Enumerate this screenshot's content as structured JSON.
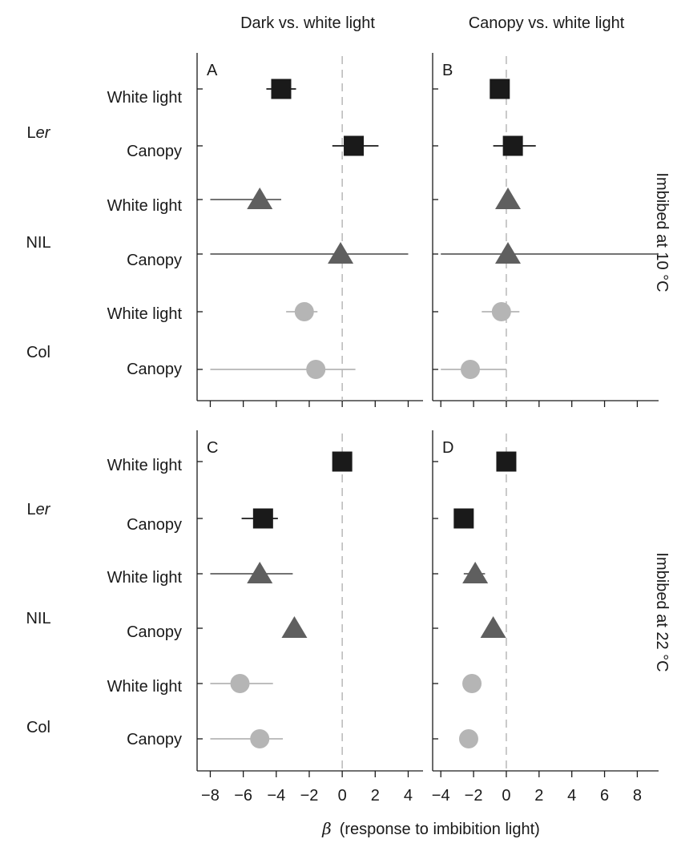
{
  "column_titles": [
    "Dark vs. white light",
    "Canopy vs. white light"
  ],
  "row_strips": [
    "Imbibed at 10 °C",
    "Imbibed at 22 °C"
  ],
  "genotype_labels": [
    "Ler",
    "NIL",
    "Col"
  ],
  "x_label": {
    "symbol": "β",
    "text": "(response to imbibition light)"
  },
  "colors": {
    "Ler": "#1a1a1a",
    "NIL": "#5f5f5f",
    "Col": "#b5b5b5",
    "zero_line": "#b3b3b3"
  },
  "markers": {
    "Ler": "square",
    "NIL": "triangle",
    "Col": "circle"
  },
  "chart_data": {
    "type": "forest",
    "rows": [
      {
        "genotype": "Ler",
        "treatment": "White light"
      },
      {
        "genotype": "Ler",
        "treatment": "Canopy"
      },
      {
        "genotype": "NIL",
        "treatment": "White light"
      },
      {
        "genotype": "NIL",
        "treatment": "Canopy"
      },
      {
        "genotype": "Col",
        "treatment": "White light"
      },
      {
        "genotype": "Col",
        "treatment": "Canopy"
      }
    ],
    "columns": [
      {
        "title": "Dark vs. white light",
        "xlim": [
          -8.8,
          4.9
        ],
        "xticks": [
          -8,
          -6,
          -4,
          -2,
          0,
          2,
          4
        ]
      },
      {
        "title": "Canopy vs. white light",
        "xlim": [
          -4.5,
          9.3
        ],
        "xticks": [
          -4,
          -2,
          0,
          2,
          4,
          6,
          8
        ]
      }
    ],
    "panels": [
      {
        "label": "A",
        "condition": "Imbibed at 10 °C",
        "comparison": "Dark vs. white light",
        "estimates": [
          -3.7,
          0.7,
          -5.0,
          -0.1,
          -2.3,
          -1.6
        ],
        "ci": [
          [
            -4.6,
            -2.8
          ],
          [
            -0.6,
            2.2
          ],
          [
            -8.0,
            -3.7
          ],
          [
            -8.0,
            4.0
          ],
          [
            -3.4,
            -1.5
          ],
          [
            -8.0,
            0.8
          ]
        ]
      },
      {
        "label": "B",
        "condition": "Imbibed at 10 °C",
        "comparison": "Canopy vs. white light",
        "estimates": [
          -0.4,
          0.4,
          0.1,
          0.1,
          -0.3,
          -2.2
        ],
        "ci": [
          [
            -0.6,
            -0.2
          ],
          [
            -0.8,
            1.8
          ],
          [
            -0.2,
            0.4
          ],
          [
            -4.0,
            9.3
          ],
          [
            -1.5,
            0.8
          ],
          [
            -4.0,
            0.0
          ]
        ]
      },
      {
        "label": "C",
        "condition": "Imbibed at 22 °C",
        "comparison": "Dark vs. white light",
        "estimates": [
          0.0,
          -4.8,
          -5.0,
          -2.9,
          -6.2,
          -5.0
        ],
        "ci": [
          [
            -0.2,
            0.2
          ],
          [
            -6.1,
            -3.9
          ],
          [
            -8.0,
            -3.0
          ],
          [
            -3.0,
            -2.8
          ],
          [
            -8.0,
            -4.2
          ],
          [
            -8.0,
            -3.6
          ]
        ]
      },
      {
        "label": "D",
        "condition": "Imbibed at 22 °C",
        "comparison": "Canopy vs. white light",
        "estimates": [
          0.0,
          -2.6,
          -1.9,
          -0.8,
          -2.1,
          -2.3
        ],
        "ci": [
          [
            -0.2,
            0.2
          ],
          [
            -2.8,
            -2.4
          ],
          [
            -2.6,
            -1.3
          ],
          [
            -1.0,
            -0.6
          ],
          [
            -2.3,
            -1.9
          ],
          [
            -2.5,
            -2.1
          ]
        ]
      }
    ],
    "reference_line": 0
  }
}
